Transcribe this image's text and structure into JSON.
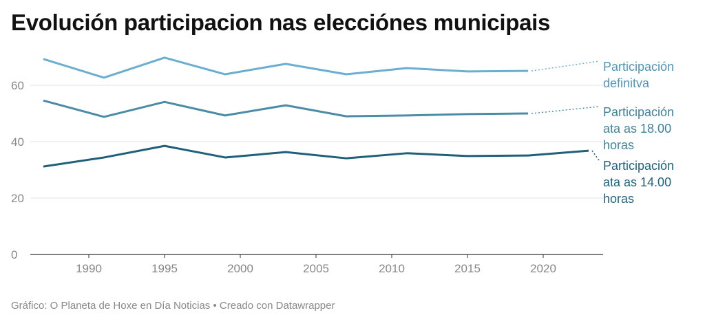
{
  "chart_data": {
    "type": "line",
    "title": "Evolución participacion nas elecciónes municipais",
    "x": [
      1987,
      1991,
      1995,
      1999,
      2003,
      2007,
      2011,
      2015,
      2019,
      2023
    ],
    "xticks": [
      1990,
      1995,
      2000,
      2005,
      2010,
      2015,
      2020
    ],
    "yticks": [
      0,
      20,
      40,
      60
    ],
    "xlim": [
      1987,
      2023
    ],
    "ylim": [
      0,
      70
    ],
    "grid": true,
    "series": [
      {
        "name": "Participación definitva",
        "label_lines": [
          "Participación",
          "definitva"
        ],
        "color": "#6aaed0",
        "label_color": "#4f98bb",
        "values": [
          69.3,
          62.7,
          69.8,
          63.9,
          67.6,
          63.9,
          66.1,
          64.9,
          65.1,
          null
        ]
      },
      {
        "name": "Participación ata as 18.00 horas",
        "label_lines": [
          "Participación",
          "ata as 18.00",
          "horas"
        ],
        "color": "#4a8ca8",
        "label_color": "#3f839f",
        "values": [
          54.6,
          48.8,
          54.1,
          49.3,
          52.9,
          49.0,
          49.3,
          49.8,
          50.0,
          null
        ]
      },
      {
        "name": "Participación ata as 14.00 horas",
        "label_lines": [
          "Participación",
          "ata as 14.00",
          "horas"
        ],
        "color": "#1e5f7a",
        "label_color": "#1f6580",
        "values": [
          31.2,
          34.4,
          38.5,
          34.4,
          36.3,
          34.1,
          35.9,
          34.9,
          35.1,
          36.8
        ]
      }
    ]
  },
  "footer": "Gráfico: O Planeta de Hoxe en Día Noticias • Creado con Datawrapper"
}
